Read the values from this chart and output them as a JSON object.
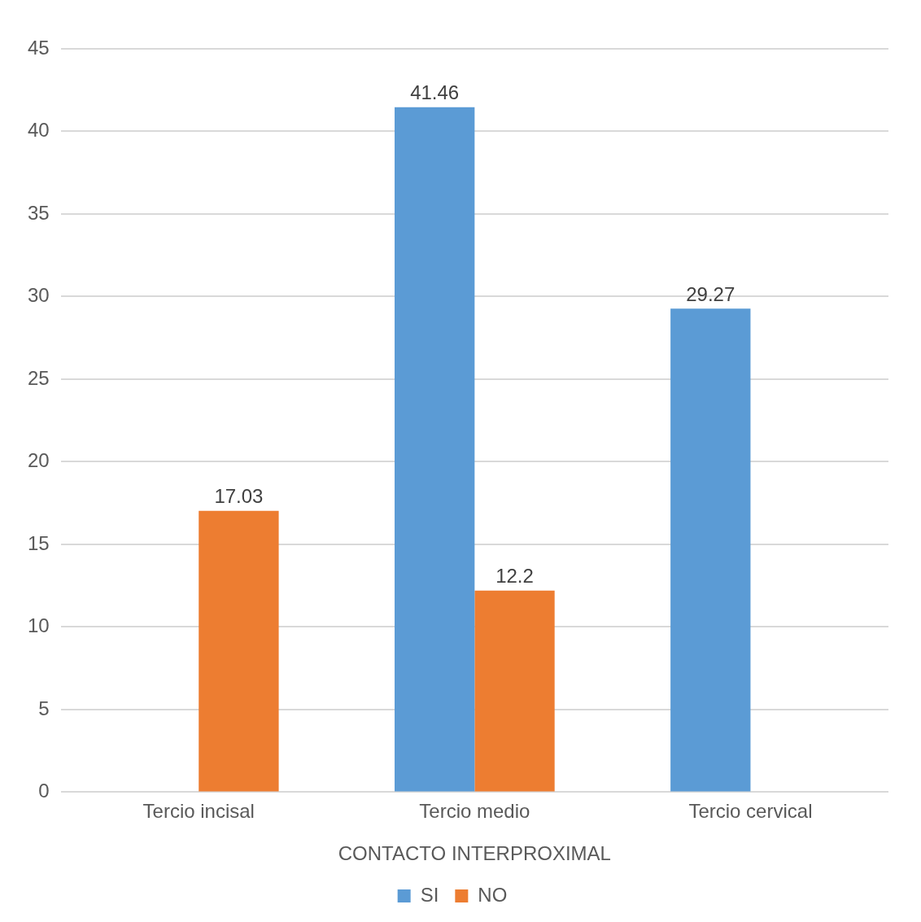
{
  "chart_data": {
    "type": "bar",
    "xlabel": "CONTACTO INTERPROXIMAL",
    "categories": [
      "Tercio incisal",
      "Tercio medio",
      "Tercio cervical"
    ],
    "series": [
      {
        "name": "SI",
        "color": "#5b9bd5",
        "values": [
          null,
          41.46,
          29.27
        ]
      },
      {
        "name": "NO",
        "color": "#ed7d31",
        "values": [
          17.03,
          12.2,
          null
        ]
      }
    ],
    "ylim": [
      0,
      45
    ],
    "yticks": [
      0,
      5,
      10,
      15,
      20,
      25,
      30,
      35,
      40,
      45
    ],
    "grid": "y",
    "legend": "bottom",
    "data_labels": true
  }
}
